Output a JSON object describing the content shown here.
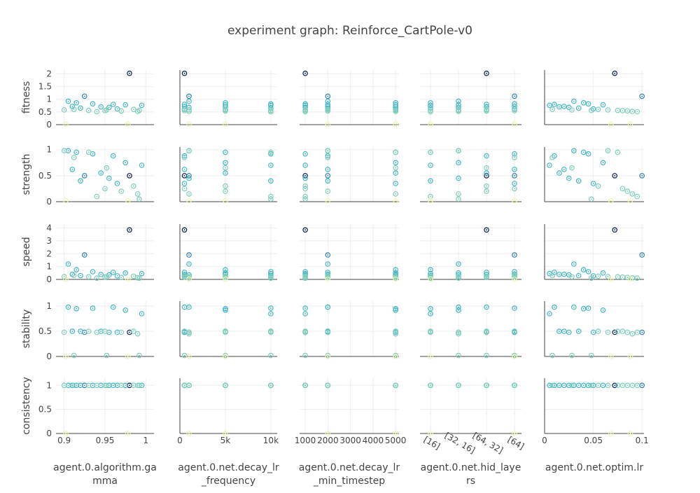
{
  "title": "experiment graph: Reinforce_CartPole-v0",
  "chart_data": {
    "type": "scatter",
    "title": "experiment graph: Reinforce_CartPole-v0",
    "layout": "5x5 scatter-plot matrix; rows = metrics, columns = hyperparameters; markers are hollow circles with a center dot, colored by fitness (light green-yellow low, teal mid, dark navy high)",
    "colorscale": [
      "#edf8b1",
      "#7fcdbb",
      "#41b6c4",
      "#2c7fb8",
      "#253494",
      "#081d58"
    ],
    "grid": true,
    "rows": [
      {
        "key": "fitness",
        "label": "fitness",
        "ylim": [
          0,
          2.15
        ],
        "ticks": [
          0,
          0.5,
          1,
          1.5,
          2
        ],
        "tick_labels": [
          "0",
          "0.5",
          "1",
          "1.5",
          "2"
        ]
      },
      {
        "key": "strength",
        "label": "strength",
        "ylim": [
          0,
          1.05
        ],
        "ticks": [
          0,
          0.5,
          1
        ],
        "tick_labels": [
          "0",
          "0.5",
          "1"
        ]
      },
      {
        "key": "speed",
        "label": "speed",
        "ylim": [
          0,
          4.3
        ],
        "ticks": [
          0,
          1,
          2,
          3,
          4
        ],
        "tick_labels": [
          "0",
          "1",
          "2",
          "3",
          "4"
        ]
      },
      {
        "key": "stability",
        "label": "stability",
        "ylim": [
          0,
          1.1
        ],
        "ticks": [
          0,
          0.5,
          1
        ],
        "tick_labels": [
          "0",
          "0.5",
          "1"
        ]
      },
      {
        "key": "consistency",
        "label": "consistency",
        "ylim": [
          0,
          1.15
        ],
        "ticks": [
          0,
          0.5,
          1
        ],
        "tick_labels": [
          "0",
          "0.5",
          "1"
        ]
      }
    ],
    "columns": [
      {
        "key": "gamma",
        "label": "agent.0.algorithm.gamma",
        "label_lines": [
          "agent.0.algorithm.ga",
          "mma"
        ],
        "type": "linear",
        "xlim": [
          0.89,
          1.01
        ],
        "ticks": [
          0.9,
          0.95,
          1
        ],
        "tick_labels": [
          "0.9",
          "0.95",
          "1"
        ],
        "zero_line": false
      },
      {
        "key": "decay_freq",
        "label": "agent.0.net.decay_lr_frequency",
        "label_lines": [
          "agent.0.net.decay_lr",
          "_frequency"
        ],
        "type": "linear",
        "xlim": [
          0,
          10700
        ],
        "ticks": [
          0,
          5000,
          10000
        ],
        "tick_labels": [
          "0",
          "5k",
          "10k"
        ],
        "zero_line": true
      },
      {
        "key": "decay_min",
        "label": "agent.0.net.decay_lr_min_timestep",
        "label_lines": [
          "agent.0.net.decay_lr",
          "_min_timestep"
        ],
        "type": "linear",
        "xlim": [
          750,
          5150
        ],
        "ticks": [
          1000,
          2000,
          3000,
          4000,
          5000
        ],
        "tick_labels": [
          "1000",
          "2000",
          "3000",
          "4000",
          "5000"
        ],
        "zero_line": false
      },
      {
        "key": "hid_layers",
        "label": "agent.0.net.hid_layers",
        "label_lines": [
          "agent.0.net.hid_laye",
          "rs"
        ],
        "type": "category",
        "categories": [
          "[16]",
          "[32, 16]",
          "[64, 32]",
          "[64]"
        ],
        "zero_line": false
      },
      {
        "key": "optim_lr",
        "label": "agent.0.net.optim.lr",
        "label_lines": [
          "agent.0.net.optim.lr"
        ],
        "type": "linear",
        "xlim": [
          0,
          0.102
        ],
        "ticks": [
          0,
          0.05,
          0.1
        ],
        "tick_labels": [
          "0",
          "0.05",
          "0.1"
        ],
        "zero_line": true
      }
    ],
    "points": [
      {
        "gamma": 0.98,
        "decay_freq": 500,
        "decay_min": 1000,
        "hid_layers": "[64, 32]",
        "optim_lr": 0.072,
        "fitness": 2.02,
        "strength": 0.5,
        "speed": 3.85,
        "stability": 0.48,
        "consistency": 1
      },
      {
        "gamma": 0.925,
        "decay_freq": 1000,
        "decay_min": 2000,
        "hid_layers": "[64]",
        "optim_lr": 0.1,
        "fitness": 1.12,
        "strength": 0.5,
        "speed": 1.9,
        "stability": 0.48,
        "consistency": 1
      },
      {
        "gamma": 0.905,
        "decay_freq": 1000,
        "decay_min": 2000,
        "hid_layers": "[32, 16]",
        "optim_lr": 0.03,
        "fitness": 0.92,
        "strength": 0.98,
        "speed": 1.2,
        "stability": 0.98,
        "consistency": 1
      },
      {
        "gamma": 0.915,
        "decay_freq": 5000,
        "decay_min": 5000,
        "hid_layers": "[16]",
        "optim_lr": 0.04,
        "fitness": 0.86,
        "strength": 0.95,
        "speed": 0.75,
        "stability": 0.95,
        "consistency": 1
      },
      {
        "gamma": 0.935,
        "decay_freq": 10000,
        "decay_min": 1000,
        "hid_layers": "[64]",
        "optim_lr": 0.045,
        "fitness": 0.82,
        "strength": 0.92,
        "speed": 0.6,
        "stability": 0.96,
        "consistency": 1
      },
      {
        "gamma": 0.96,
        "decay_freq": 500,
        "decay_min": 2000,
        "hid_layers": "[64, 32]",
        "optim_lr": 0.01,
        "fitness": 0.8,
        "strength": 0.88,
        "speed": 0.55,
        "stability": 0.98,
        "consistency": 1
      },
      {
        "gamma": 0.975,
        "decay_freq": 5000,
        "decay_min": 5000,
        "hid_layers": "[32, 16]",
        "optim_lr": 0.06,
        "fitness": 0.78,
        "strength": 0.75,
        "speed": 0.5,
        "stability": 0.92,
        "consistency": 1
      },
      {
        "gamma": 0.995,
        "decay_freq": 10000,
        "decay_min": 1000,
        "hid_layers": "[16]",
        "optim_lr": 0.005,
        "fitness": 0.76,
        "strength": 0.7,
        "speed": 0.45,
        "stability": 0.85,
        "consistency": 1
      },
      {
        "gamma": 0.91,
        "decay_freq": 500,
        "decay_min": 2000,
        "hid_layers": "[64]",
        "optim_lr": 0.02,
        "fitness": 0.72,
        "strength": 0.62,
        "speed": 0.4,
        "stability": 0.5,
        "consistency": 1
      },
      {
        "gamma": 0.945,
        "decay_freq": 5000,
        "decay_min": 5000,
        "hid_layers": "[64, 32]",
        "optim_lr": 0.015,
        "fitness": 0.7,
        "strength": 0.55,
        "speed": 0.38,
        "stability": 0.5,
        "consistency": 1
      },
      {
        "gamma": 0.955,
        "decay_freq": 1000,
        "decay_min": 1000,
        "hid_layers": "[32, 16]",
        "optim_lr": 0.025,
        "fitness": 0.68,
        "strength": 0.45,
        "speed": 0.35,
        "stability": 0.48,
        "consistency": 1
      },
      {
        "gamma": 0.92,
        "decay_freq": 10000,
        "decay_min": 2000,
        "hid_layers": "[16]",
        "optim_lr": 0.035,
        "fitness": 0.65,
        "strength": 0.4,
        "speed": 0.3,
        "stability": 0.5,
        "consistency": 1
      },
      {
        "gamma": 0.965,
        "decay_freq": 500,
        "decay_min": 5000,
        "hid_layers": "[64]",
        "optim_lr": 0.05,
        "fitness": 0.62,
        "strength": 0.35,
        "speed": 0.28,
        "stability": 0.48,
        "consistency": 1
      },
      {
        "gamma": 0.985,
        "decay_freq": 5000,
        "decay_min": 1000,
        "hid_layers": "[64, 32]",
        "optim_lr": 0.055,
        "fitness": 0.6,
        "strength": 0.3,
        "speed": 0.25,
        "stability": 0.5,
        "consistency": 1
      },
      {
        "gamma": 0.9,
        "decay_freq": 1000,
        "decay_min": 2000,
        "hid_layers": "[32, 16]",
        "optim_lr": 0.065,
        "fitness": 0.58,
        "strength": 0.98,
        "speed": 0.22,
        "stability": 0.48,
        "consistency": 1
      },
      {
        "gamma": 0.93,
        "decay_freq": 10000,
        "decay_min": 5000,
        "hid_layers": "[16]",
        "optim_lr": 0.075,
        "fitness": 0.56,
        "strength": 0.95,
        "speed": 0.2,
        "stability": 0.5,
        "consistency": 1
      },
      {
        "gamma": 0.95,
        "decay_freq": 500,
        "decay_min": 1000,
        "hid_layers": "[64]",
        "optim_lr": 0.08,
        "fitness": 0.55,
        "strength": 0.25,
        "speed": 0.18,
        "stability": 0.5,
        "consistency": 1
      },
      {
        "gamma": 0.97,
        "decay_freq": 5000,
        "decay_min": 2000,
        "hid_layers": "[64, 32]",
        "optim_lr": 0.085,
        "fitness": 0.54,
        "strength": 0.2,
        "speed": 0.15,
        "stability": 0.48,
        "consistency": 1
      },
      {
        "gamma": 0.99,
        "decay_freq": 1000,
        "decay_min": 5000,
        "hid_layers": "[32, 16]",
        "optim_lr": 0.09,
        "fitness": 0.52,
        "strength": 0.15,
        "speed": 0.12,
        "stability": 0.45,
        "consistency": 1
      },
      {
        "gamma": 0.94,
        "decay_freq": 10000,
        "decay_min": 1000,
        "hid_layers": "[16]",
        "optim_lr": 0.095,
        "fitness": 0.51,
        "strength": 0.1,
        "speed": 0.1,
        "stability": 0.48,
        "consistency": 1
      },
      {
        "gamma": 0.912,
        "decay_freq": 500,
        "decay_min": 2000,
        "hid_layers": "[64]",
        "optim_lr": 0.008,
        "fitness": 0.6,
        "strength": 0.85,
        "speed": 0.3,
        "stability": 0.02,
        "consistency": 1
      },
      {
        "gamma": 0.952,
        "decay_freq": 5000,
        "decay_min": 5000,
        "hid_layers": "[64, 32]",
        "optim_lr": 0.028,
        "fitness": 0.58,
        "strength": 0.65,
        "speed": 0.2,
        "stability": 0.02,
        "consistency": 1
      },
      {
        "gamma": 0.992,
        "decay_freq": 10000,
        "decay_min": 1000,
        "hid_layers": "[32, 16]",
        "optim_lr": 0.048,
        "fitness": 0.56,
        "strength": 0.05,
        "speed": 0.1,
        "stability": 0.02,
        "consistency": 1
      },
      {
        "gamma": 0.902,
        "decay_freq": 1000,
        "decay_min": 2000,
        "hid_layers": "[16]",
        "optim_lr": 0.068,
        "fitness": 0.02,
        "strength": 0.02,
        "speed": 0.02,
        "stability": 0.0,
        "consistency": 0.0
      },
      {
        "gamma": 0.978,
        "decay_freq": 5000,
        "decay_min": 5000,
        "hid_layers": "[64]",
        "optim_lr": 0.088,
        "fitness": 0.02,
        "strength": 0.02,
        "speed": 0.02,
        "stability": 0.0,
        "consistency": 0.0
      }
    ]
  }
}
